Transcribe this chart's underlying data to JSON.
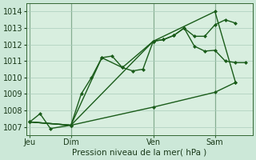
{
  "background_color": "#cce8d8",
  "plot_bg_color": "#d8eedf",
  "grid_color": "#aaccbb",
  "line_color": "#1a5c1a",
  "xlabel": "Pression niveau de la mer( hPa )",
  "ylim": [
    1006.5,
    1014.5
  ],
  "yticks": [
    1007,
    1008,
    1009,
    1010,
    1011,
    1012,
    1013,
    1014
  ],
  "day_labels": [
    "Jeu",
    "Dim",
    "Ven",
    "Sam"
  ],
  "day_positions": [
    0,
    24,
    72,
    108
  ],
  "xlim": [
    -2,
    130
  ],
  "vline_positions": [
    0,
    24,
    72,
    108
  ],
  "series1": {
    "x": [
      0,
      6,
      12,
      24,
      30,
      36,
      42,
      48,
      54,
      60,
      66,
      72,
      78,
      84,
      90,
      96,
      102,
      108,
      114,
      120,
      126
    ],
    "y": [
      1007.3,
      1007.8,
      1006.9,
      1007.1,
      1009.0,
      1010.0,
      1011.2,
      1011.3,
      1010.6,
      1010.4,
      1010.5,
      1012.2,
      1012.3,
      1012.55,
      1013.0,
      1011.9,
      1011.6,
      1011.65,
      1011.0,
      1010.9,
      1010.9
    ]
  },
  "series2": {
    "x": [
      0,
      24,
      42,
      54,
      72,
      78,
      84,
      90,
      96,
      102,
      108,
      114,
      120
    ],
    "y": [
      1007.3,
      1007.1,
      1011.2,
      1010.6,
      1012.2,
      1012.3,
      1012.55,
      1013.0,
      1012.5,
      1012.5,
      1013.2,
      1013.5,
      1013.3
    ]
  },
  "series3": {
    "x": [
      0,
      24,
      72,
      108,
      120
    ],
    "y": [
      1007.3,
      1007.1,
      1012.2,
      1014.0,
      1009.7
    ]
  },
  "series4": {
    "x": [
      0,
      24,
      72,
      108,
      120
    ],
    "y": [
      1007.3,
      1007.1,
      1008.2,
      1009.1,
      1009.7
    ]
  }
}
